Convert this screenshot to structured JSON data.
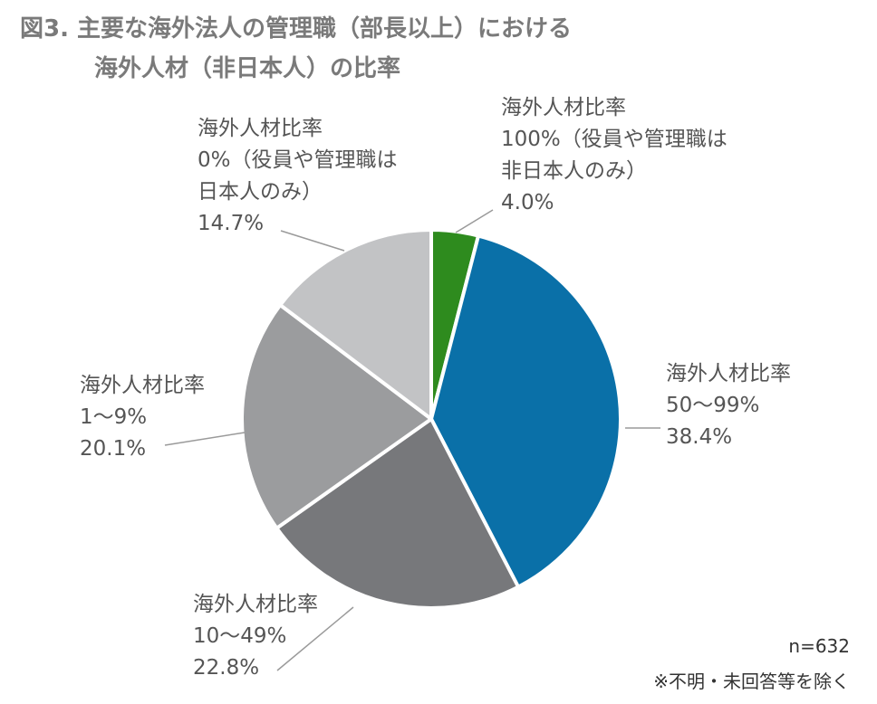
{
  "title": {
    "line1": "図3. 主要な海外法人の管理職（部長以上）における",
    "line2": "海外人材（非日本人）の比率"
  },
  "notes": {
    "sample": "n=632",
    "exclusion": "※不明・未回答等を除く"
  },
  "chart_data": {
    "type": "pie",
    "title": "図3. 主要な海外法人の管理職（部長以上）における海外人材（非日本人）の比率",
    "start": "12 o'clock, clockwise",
    "slices": [
      {
        "label": [
          "海外人材比率",
          "100%（役員や管理職は",
          "非日本人のみ）"
        ],
        "value": 4.0,
        "value_text": "4.0%",
        "color": "#2e8b1e"
      },
      {
        "label": [
          "海外人材比率",
          "50〜99%"
        ],
        "value": 38.4,
        "value_text": "38.4%",
        "color": "#0a70a8"
      },
      {
        "label": [
          "海外人材比率",
          "10〜49%"
        ],
        "value": 22.8,
        "value_text": "22.8%",
        "color": "#77787b"
      },
      {
        "label": [
          "海外人材比率",
          "1〜9%"
        ],
        "value": 20.1,
        "value_text": "20.1%",
        "color": "#9b9c9e"
      },
      {
        "label": [
          "海外人材比率",
          "0%（役員や管理職は",
          "日本人のみ）"
        ],
        "value": 14.7,
        "value_text": "14.7%",
        "color": "#c2c3c5"
      }
    ]
  }
}
